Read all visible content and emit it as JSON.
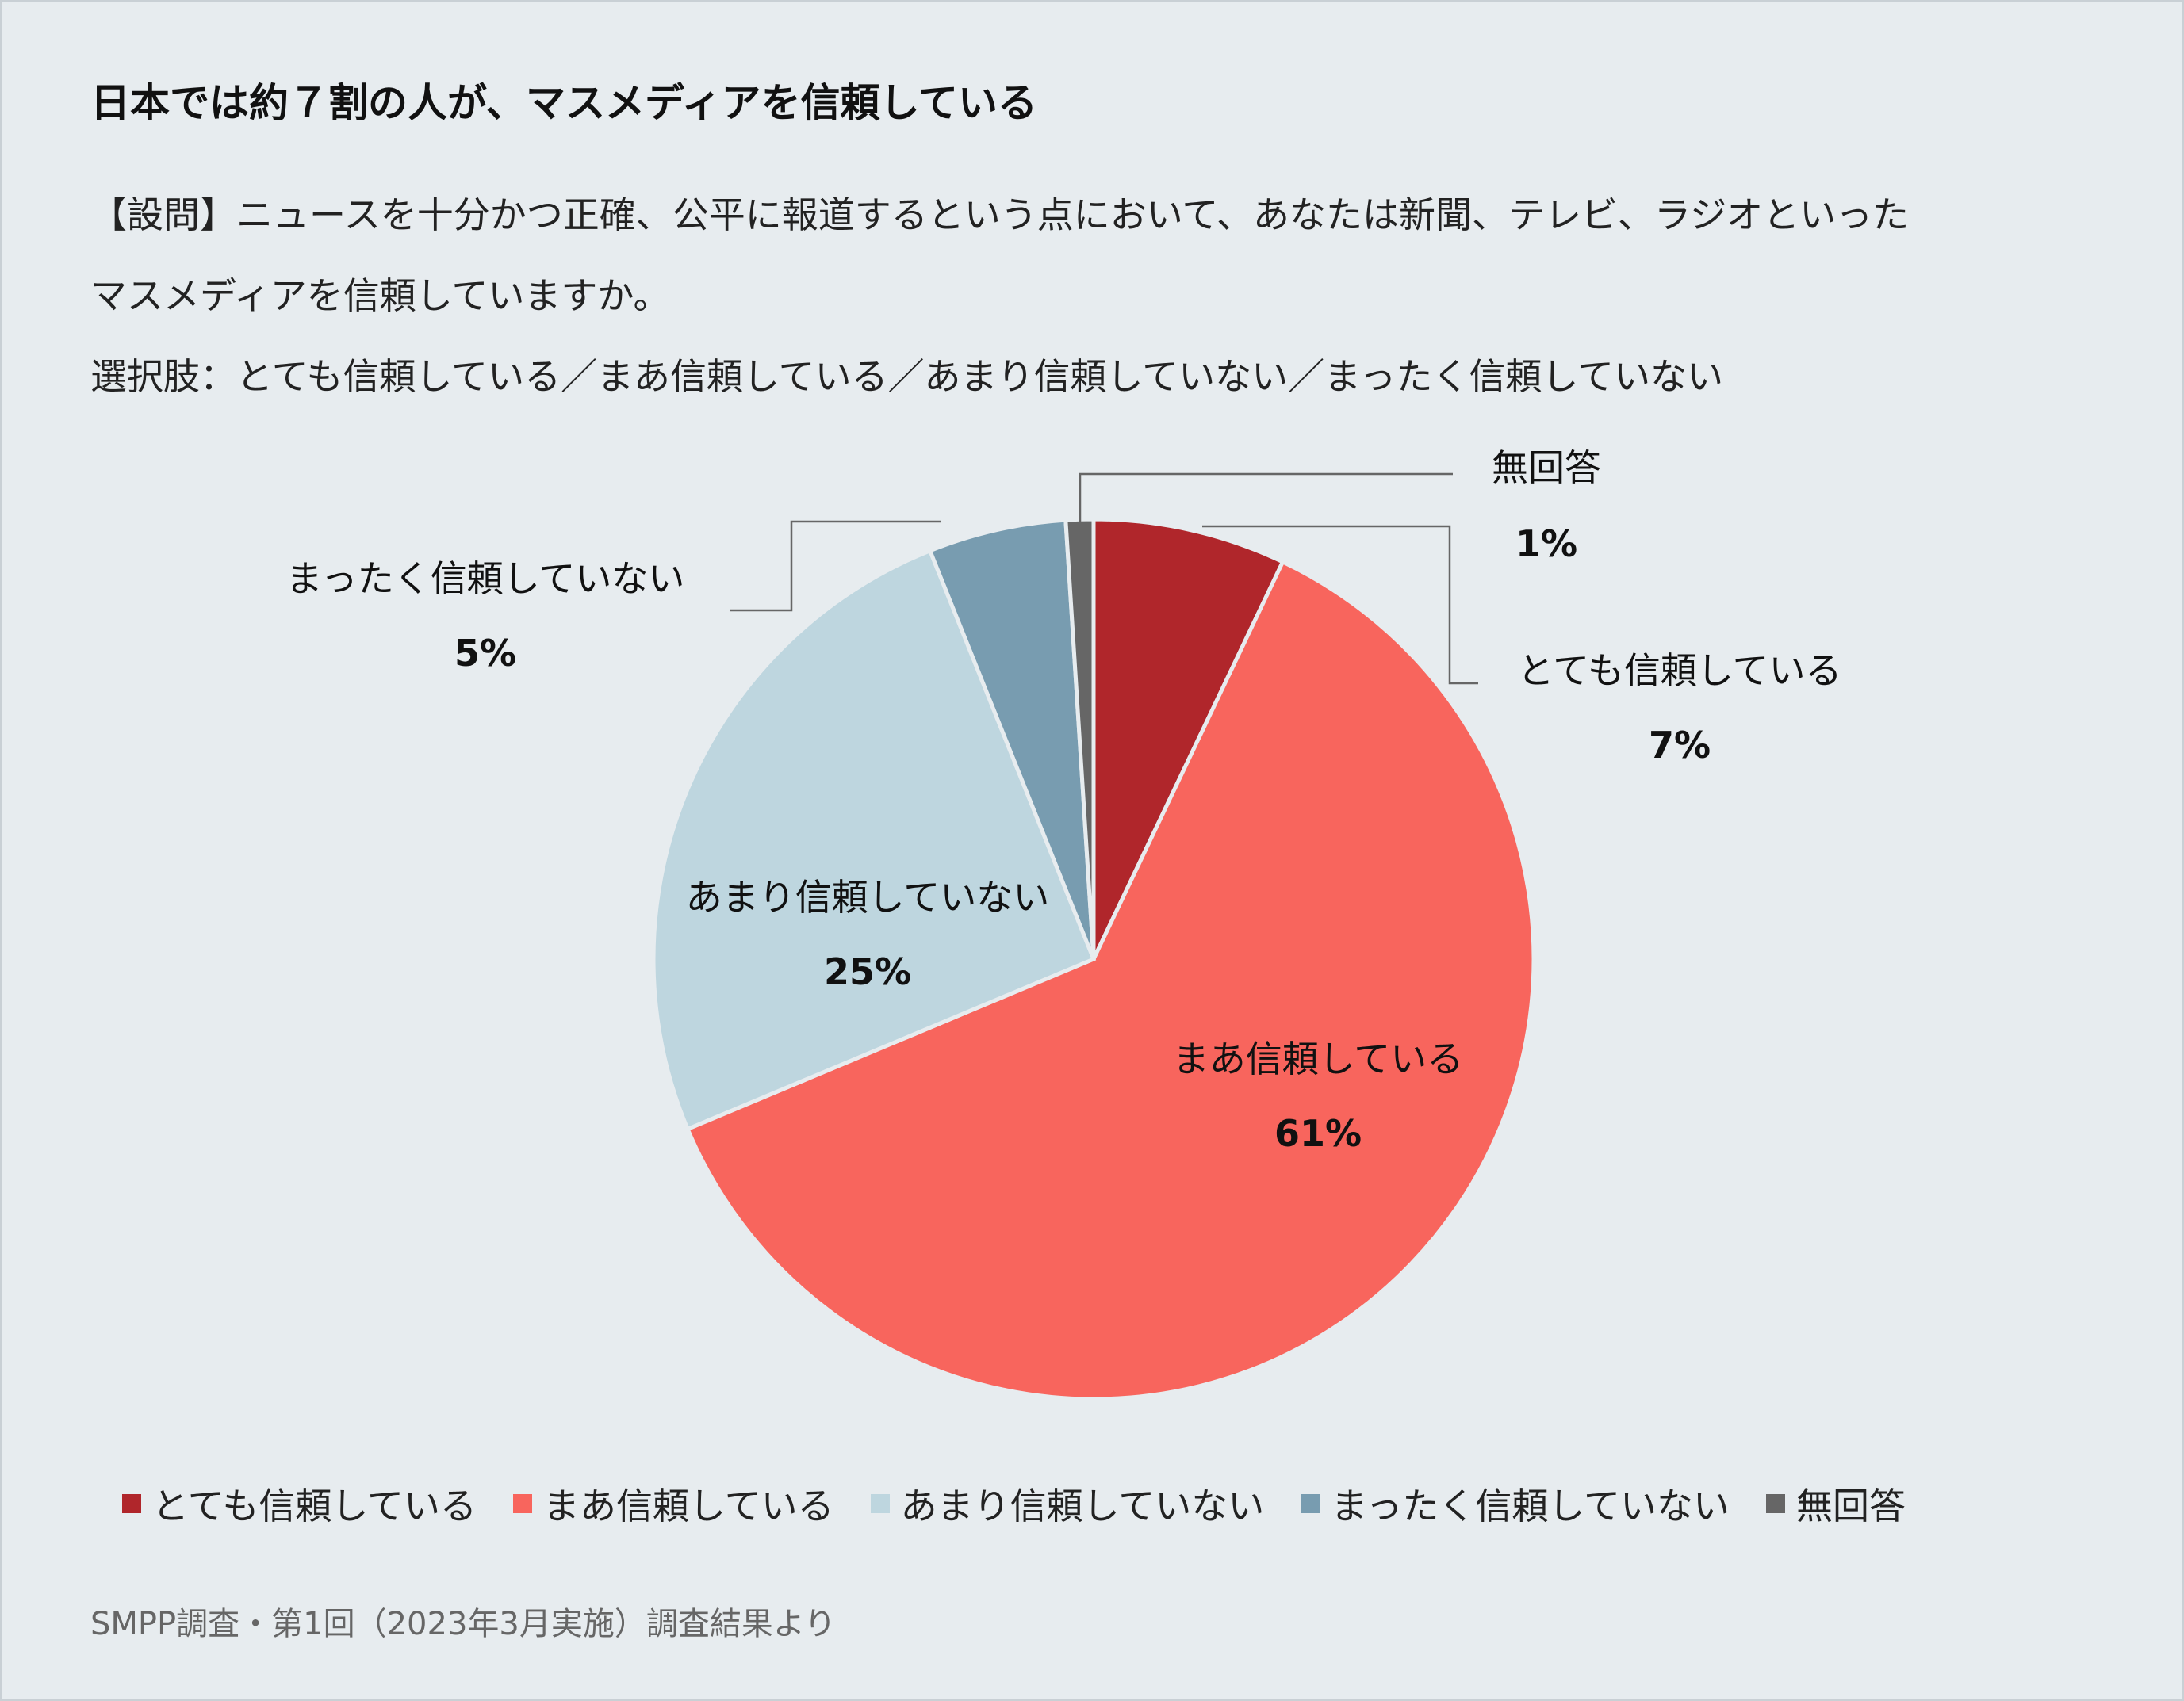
{
  "title": "日本では約７割の人が、マスメディアを信頼している",
  "question": {
    "line1": "【設問】ニュースを十分かつ正確、公平に報道するという点において、あなたは新聞、テレビ、ラジオといった",
    "line2": "マスメディアを信頼していますか。",
    "line3": "選択肢：とても信頼している／まあ信頼している／あまり信頼していない／まったく信頼していない"
  },
  "source": "SMPP調査・第1回（2023年3月実施）調査結果より",
  "chart_data": {
    "type": "pie",
    "categories": [
      "とても信頼している",
      "まあ信頼している",
      "あまり信頼していない",
      "まったく信頼していない",
      "無回答"
    ],
    "values": [
      7,
      61,
      25,
      5,
      1
    ],
    "value_labels": [
      "7%",
      "61%",
      "25%",
      "5%",
      "1%"
    ],
    "colors": [
      "#b0262b",
      "#f8655d",
      "#bed6df",
      "#789cb0",
      "#666666"
    ],
    "start_angle": "12 o'clock",
    "direction": "clockwise",
    "legend_position": "bottom"
  },
  "legend": [
    {
      "label": "とても信頼している",
      "color": "#b0262b"
    },
    {
      "label": "まあ信頼している",
      "color": "#f8655d"
    },
    {
      "label": "あまり信頼していない",
      "color": "#bed6df"
    },
    {
      "label": "まったく信頼していない",
      "color": "#789cb0"
    },
    {
      "label": "無回答",
      "color": "#666666"
    }
  ]
}
